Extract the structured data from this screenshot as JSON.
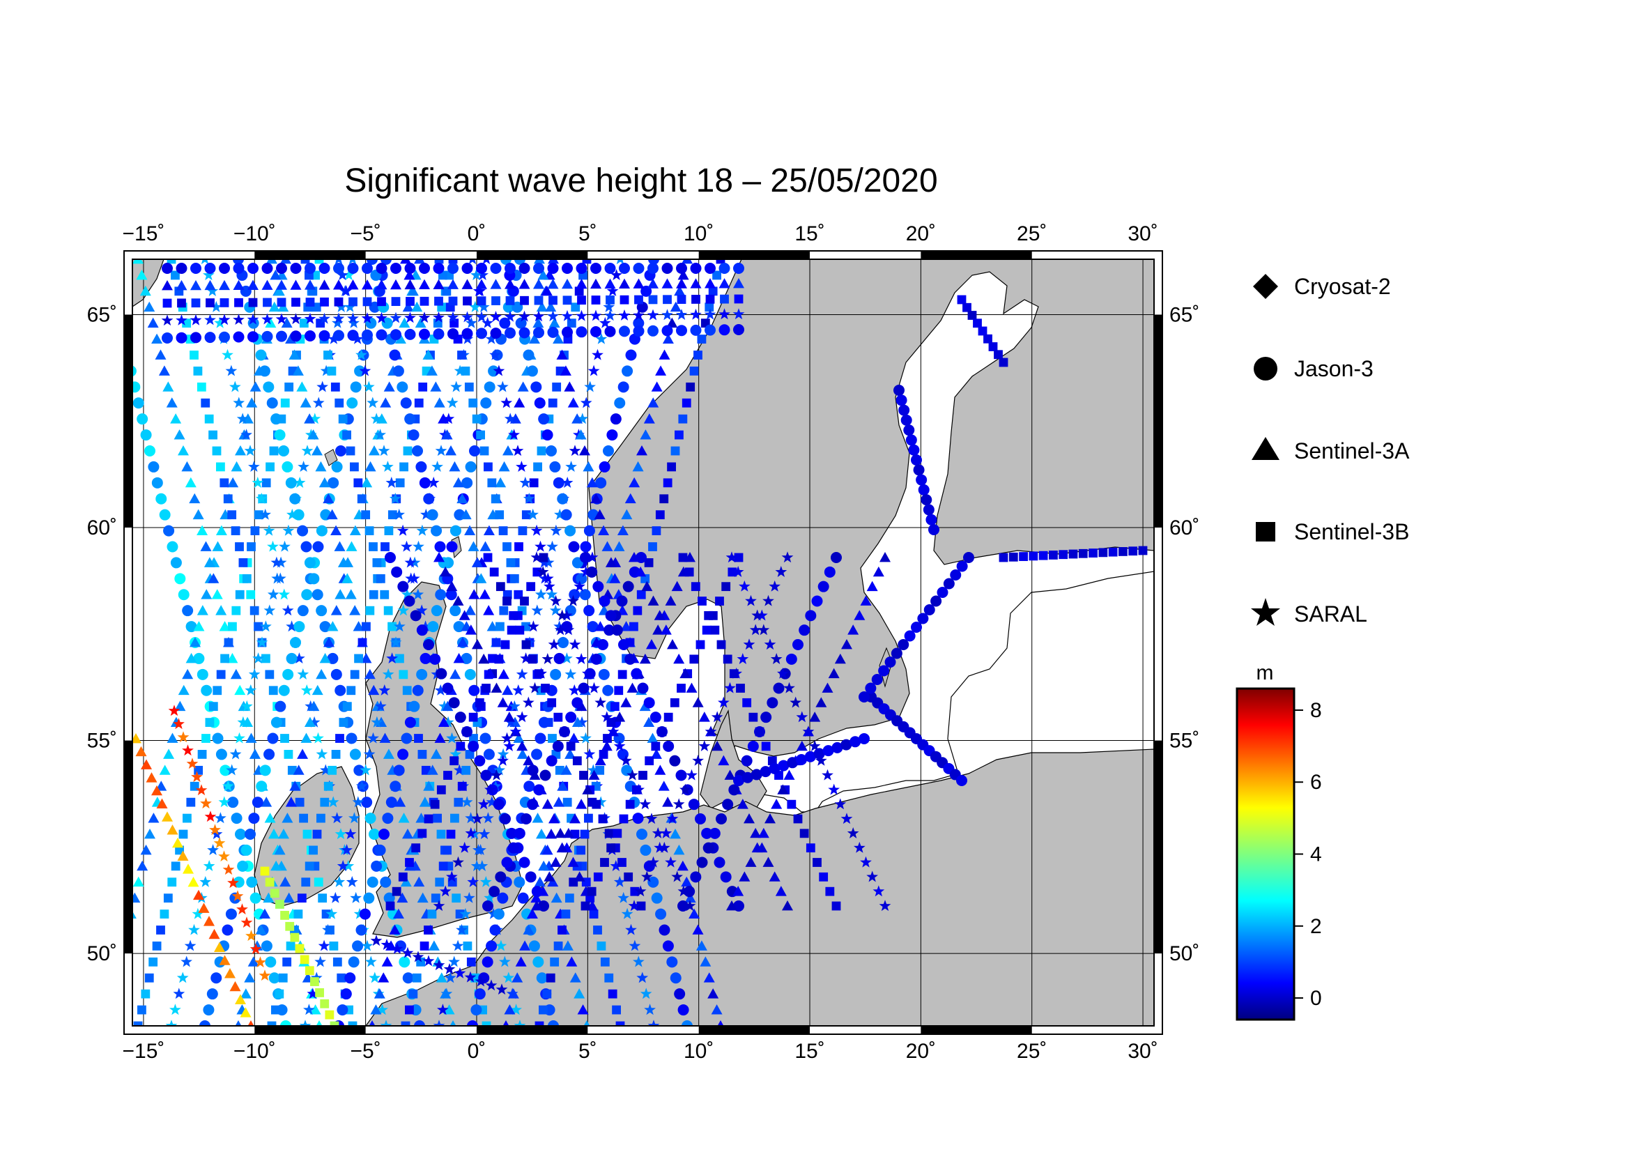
{
  "title": "Significant wave height 18 – 25/05/2020",
  "map": {
    "lon_range": [
      -15.5,
      30.5
    ],
    "lat_range": [
      48.3,
      66.3
    ],
    "lon_ticks": [
      -15,
      -10,
      -5,
      0,
      5,
      10,
      15,
      20,
      25,
      30
    ],
    "lon_labels": [
      "−15˚",
      "−10˚",
      "−5˚",
      "0˚",
      "5˚",
      "10˚",
      "15˚",
      "20˚",
      "25˚",
      "30˚"
    ],
    "lat_ticks": [
      50,
      55,
      60,
      65
    ],
    "lat_labels": [
      "50˚",
      "55˚",
      "60˚",
      "65˚"
    ],
    "grid": true,
    "land_color": "#bebebe",
    "sea_color": "#ffffff"
  },
  "legend": {
    "items": [
      {
        "label": "Cryosat-2",
        "symbol": "diamond"
      },
      {
        "label": "Jason-3",
        "symbol": "circle"
      },
      {
        "label": "Sentinel-3A",
        "symbol": "triangle"
      },
      {
        "label": "Sentinel-3B",
        "symbol": "square"
      },
      {
        "label": "SARAL",
        "symbol": "star"
      }
    ]
  },
  "colorbar": {
    "unit": "m",
    "range": [
      -0.6,
      8.6
    ],
    "ticks": [
      0,
      2,
      4,
      6,
      8
    ],
    "tick_labels": [
      "0",
      "2",
      "4",
      "6",
      "8"
    ],
    "colormap": "jet"
  }
}
